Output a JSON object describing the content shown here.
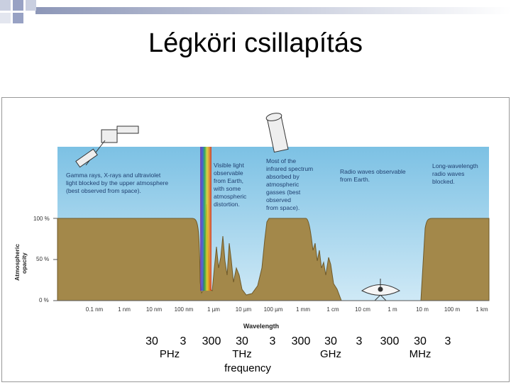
{
  "slide": {
    "title": "Légköri csillapítás"
  },
  "diagram": {
    "y_axis": {
      "label_line1": "Atmospheric",
      "label_line2": "opacity",
      "ticks": [
        "100 %",
        "50 %",
        "0 %"
      ]
    },
    "x_axis": {
      "label": "Wavelength",
      "ticks": [
        "0.1 nm",
        "1 nm",
        "10 nm",
        "100 nm",
        "1 µm",
        "10 µm",
        "100 µm",
        "1 mm",
        "1 cm",
        "10 cm",
        "1 m",
        "10 m",
        "100 m",
        "1 km"
      ]
    },
    "annotations": {
      "gamma": [
        "Gamma rays, X-rays and ultraviolet",
        "light blocked by the upper atmosphere",
        "(best observed from space)."
      ],
      "visible": [
        "Visible light",
        "observable",
        "from Earth,",
        "with some",
        "atmospheric",
        "distortion."
      ],
      "infrared": [
        "Most of the",
        "infrared spectrum",
        "absorbed by",
        "atmospheric",
        "gasses (best",
        "observed",
        "from space)."
      ],
      "radio": [
        "Radio waves observable",
        "from Earth."
      ],
      "longwave": [
        "Long-wavelength",
        "radio waves",
        "blocked."
      ]
    },
    "frequency": {
      "values": [
        "30",
        "3",
        "300",
        "30",
        "3",
        "300",
        "30",
        "3",
        "300",
        "30",
        "3"
      ],
      "units": [
        "PHz",
        "THz",
        "GHz",
        "MHz"
      ],
      "label": "frequency"
    },
    "colors": {
      "sky": "#8fcbe8",
      "opacity_fill": "#a3884a",
      "opacity_stroke": "#6f5a2a"
    }
  }
}
